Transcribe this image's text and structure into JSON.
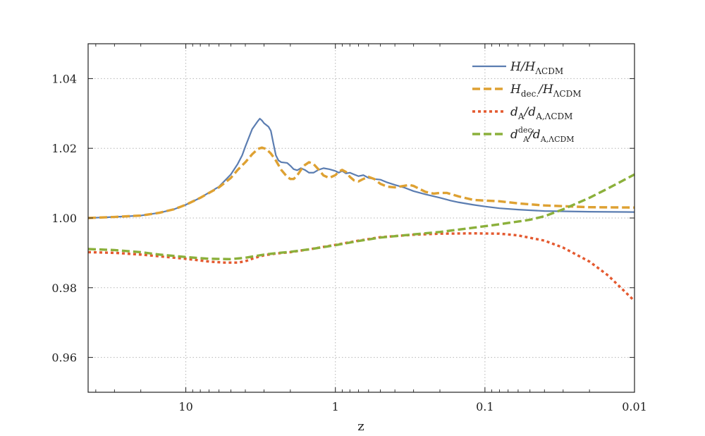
{
  "chart_data": {
    "type": "line",
    "title": "",
    "xlabel": "z",
    "ylabel": "",
    "x_scale": "log",
    "x_reversed": true,
    "xlim": [
      45,
      0.01
    ],
    "ylim": [
      0.95,
      1.05
    ],
    "x_ticks": [
      {
        "value": 10,
        "label": "10"
      },
      {
        "value": 1,
        "label": "1"
      },
      {
        "value": 0.1,
        "label": "0.1"
      },
      {
        "value": 0.01,
        "label": "0.01"
      }
    ],
    "y_ticks": [
      {
        "value": 0.96,
        "label": "0.96"
      },
      {
        "value": 0.98,
        "label": "0.98"
      },
      {
        "value": 1.0,
        "label": "1.00"
      },
      {
        "value": 1.02,
        "label": "1.02"
      },
      {
        "value": 1.04,
        "label": "1.04"
      }
    ],
    "grid": true,
    "legend_position": "top-right",
    "series": [
      {
        "name": "H/H_ΛCDM",
        "legend_main": "H/H",
        "legend_sub": "ΛCDM",
        "color": "#5b7db1",
        "style": "solid",
        "points": [
          [
            45,
            1.0
          ],
          [
            30,
            1.0003
          ],
          [
            20,
            1.0007
          ],
          [
            15,
            1.0015
          ],
          [
            12,
            1.0025
          ],
          [
            10,
            1.0038
          ],
          [
            8,
            1.0058
          ],
          [
            6,
            1.009
          ],
          [
            5,
            1.0125
          ],
          [
            4.5,
            1.0155
          ],
          [
            4.2,
            1.018
          ],
          [
            4.0,
            1.0205
          ],
          [
            3.6,
            1.0255
          ],
          [
            3.3,
            1.0278
          ],
          [
            3.2,
            1.0285
          ],
          [
            3.1,
            1.028
          ],
          [
            3.0,
            1.0272
          ],
          [
            2.8,
            1.0262
          ],
          [
            2.7,
            1.025
          ],
          [
            2.6,
            1.0215
          ],
          [
            2.5,
            1.018
          ],
          [
            2.4,
            1.0165
          ],
          [
            2.3,
            1.016
          ],
          [
            2.1,
            1.0158
          ],
          [
            2.0,
            1.015
          ],
          [
            1.9,
            1.014
          ],
          [
            1.8,
            1.0137
          ],
          [
            1.7,
            1.0143
          ],
          [
            1.6,
            1.0138
          ],
          [
            1.5,
            1.013
          ],
          [
            1.4,
            1.013
          ],
          [
            1.3,
            1.0138
          ],
          [
            1.2,
            1.0143
          ],
          [
            1.1,
            1.014
          ],
          [
            1.0,
            1.0135
          ],
          [
            0.95,
            1.013
          ],
          [
            0.9,
            1.0135
          ],
          [
            0.85,
            1.0128
          ],
          [
            0.8,
            1.013
          ],
          [
            0.75,
            1.0125
          ],
          [
            0.7,
            1.012
          ],
          [
            0.65,
            1.0123
          ],
          [
            0.6,
            1.0115
          ],
          [
            0.55,
            1.0112
          ],
          [
            0.5,
            1.011
          ],
          [
            0.45,
            1.0102
          ],
          [
            0.4,
            1.0095
          ],
          [
            0.35,
            1.0088
          ],
          [
            0.3,
            1.0077
          ],
          [
            0.25,
            1.0068
          ],
          [
            0.2,
            1.0058
          ],
          [
            0.17,
            1.005
          ],
          [
            0.15,
            1.0045
          ],
          [
            0.12,
            1.0038
          ],
          [
            0.1,
            1.0033
          ],
          [
            0.08,
            1.0028
          ],
          [
            0.06,
            1.0024
          ],
          [
            0.04,
            1.002
          ],
          [
            0.02,
            1.0018
          ],
          [
            0.01,
            1.0017
          ]
        ]
      },
      {
        "name": "H_dec./H_ΛCDM",
        "legend_main": "H",
        "legend_sub": "dec.",
        "legend_rest": "/H",
        "legend_sub2": "ΛCDM",
        "color": "#dea132",
        "style": "dashed",
        "points": [
          [
            45,
            1.0
          ],
          [
            30,
            1.0003
          ],
          [
            20,
            1.0007
          ],
          [
            15,
            1.0015
          ],
          [
            12,
            1.0025
          ],
          [
            10,
            1.0038
          ],
          [
            8,
            1.0058
          ],
          [
            6,
            1.0088
          ],
          [
            5,
            1.0115
          ],
          [
            4.5,
            1.0138
          ],
          [
            4.0,
            1.016
          ],
          [
            3.6,
            1.0183
          ],
          [
            3.3,
            1.0198
          ],
          [
            3.1,
            1.0202
          ],
          [
            2.9,
            1.0198
          ],
          [
            2.7,
            1.0185
          ],
          [
            2.5,
            1.0165
          ],
          [
            2.3,
            1.0138
          ],
          [
            2.1,
            1.0118
          ],
          [
            2.0,
            1.0112
          ],
          [
            1.9,
            1.0112
          ],
          [
            1.8,
            1.0122
          ],
          [
            1.7,
            1.0138
          ],
          [
            1.6,
            1.0152
          ],
          [
            1.5,
            1.016
          ],
          [
            1.4,
            1.0155
          ],
          [
            1.3,
            1.014
          ],
          [
            1.2,
            1.0122
          ],
          [
            1.1,
            1.0115
          ],
          [
            1.0,
            1.0123
          ],
          [
            0.95,
            1.0133
          ],
          [
            0.9,
            1.0138
          ],
          [
            0.85,
            1.0132
          ],
          [
            0.8,
            1.0118
          ],
          [
            0.75,
            1.0108
          ],
          [
            0.7,
            1.0105
          ],
          [
            0.65,
            1.0112
          ],
          [
            0.6,
            1.0118
          ],
          [
            0.55,
            1.0112
          ],
          [
            0.5,
            1.0098
          ],
          [
            0.45,
            1.009
          ],
          [
            0.4,
            1.0088
          ],
          [
            0.35,
            1.0092
          ],
          [
            0.32,
            1.0095
          ],
          [
            0.3,
            1.0092
          ],
          [
            0.25,
            1.0075
          ],
          [
            0.22,
            1.007
          ],
          [
            0.2,
            1.0072
          ],
          [
            0.18,
            1.0072
          ],
          [
            0.15,
            1.0062
          ],
          [
            0.12,
            1.0052
          ],
          [
            0.1,
            1.005
          ],
          [
            0.08,
            1.0048
          ],
          [
            0.06,
            1.0042
          ],
          [
            0.04,
            1.0036
          ],
          [
            0.02,
            1.0031
          ],
          [
            0.01,
            1.003
          ]
        ]
      },
      {
        "name": "d_A/d_A,ΛCDM",
        "legend_main": "d",
        "legend_sub": "A",
        "legend_rest": "/d",
        "legend_sub2": "A,ΛCDM",
        "color": "#e4592f",
        "style": "dotted",
        "points": [
          [
            45,
            0.9902
          ],
          [
            30,
            0.99
          ],
          [
            20,
            0.9895
          ],
          [
            15,
            0.989
          ],
          [
            10,
            0.9883
          ],
          [
            7,
            0.9875
          ],
          [
            5.5,
            0.9872
          ],
          [
            4.5,
            0.9872
          ],
          [
            4.0,
            0.9876
          ],
          [
            3.5,
            0.9885
          ],
          [
            3.0,
            0.9893
          ],
          [
            2.5,
            0.9898
          ],
          [
            2.0,
            0.9902
          ],
          [
            1.5,
            0.991
          ],
          [
            1.0,
            0.9923
          ],
          [
            0.7,
            0.9935
          ],
          [
            0.5,
            0.9945
          ],
          [
            0.3,
            0.9952
          ],
          [
            0.2,
            0.9955
          ],
          [
            0.12,
            0.9956
          ],
          [
            0.08,
            0.9955
          ],
          [
            0.06,
            0.995
          ],
          [
            0.04,
            0.9935
          ],
          [
            0.03,
            0.9915
          ],
          [
            0.02,
            0.9875
          ],
          [
            0.015,
            0.9835
          ],
          [
            0.01,
            0.9762
          ]
        ]
      },
      {
        "name": "d_A^dec./d_A,ΛCDM",
        "legend_main": "d",
        "legend_sub": "A",
        "legend_sup": "dec.",
        "legend_rest": "/d",
        "legend_sub2": "A,ΛCDM",
        "color": "#8bb03b",
        "style": "dashed",
        "points": [
          [
            45,
            0.9911
          ],
          [
            30,
            0.9908
          ],
          [
            20,
            0.9902
          ],
          [
            15,
            0.9895
          ],
          [
            10,
            0.9888
          ],
          [
            7,
            0.9883
          ],
          [
            5,
            0.9882
          ],
          [
            4.0,
            0.9886
          ],
          [
            3.0,
            0.9895
          ],
          [
            2.5,
            0.9899
          ],
          [
            2.0,
            0.9903
          ],
          [
            1.5,
            0.991
          ],
          [
            1.0,
            0.9922
          ],
          [
            0.7,
            0.9934
          ],
          [
            0.5,
            0.9944
          ],
          [
            0.3,
            0.9953
          ],
          [
            0.2,
            0.996
          ],
          [
            0.12,
            0.9972
          ],
          [
            0.08,
            0.9982
          ],
          [
            0.05,
            0.9995
          ],
          [
            0.04,
            1.0005
          ],
          [
            0.03,
            1.0025
          ],
          [
            0.02,
            1.0058
          ],
          [
            0.015,
            1.0085
          ],
          [
            0.01,
            1.0125
          ]
        ]
      }
    ]
  }
}
